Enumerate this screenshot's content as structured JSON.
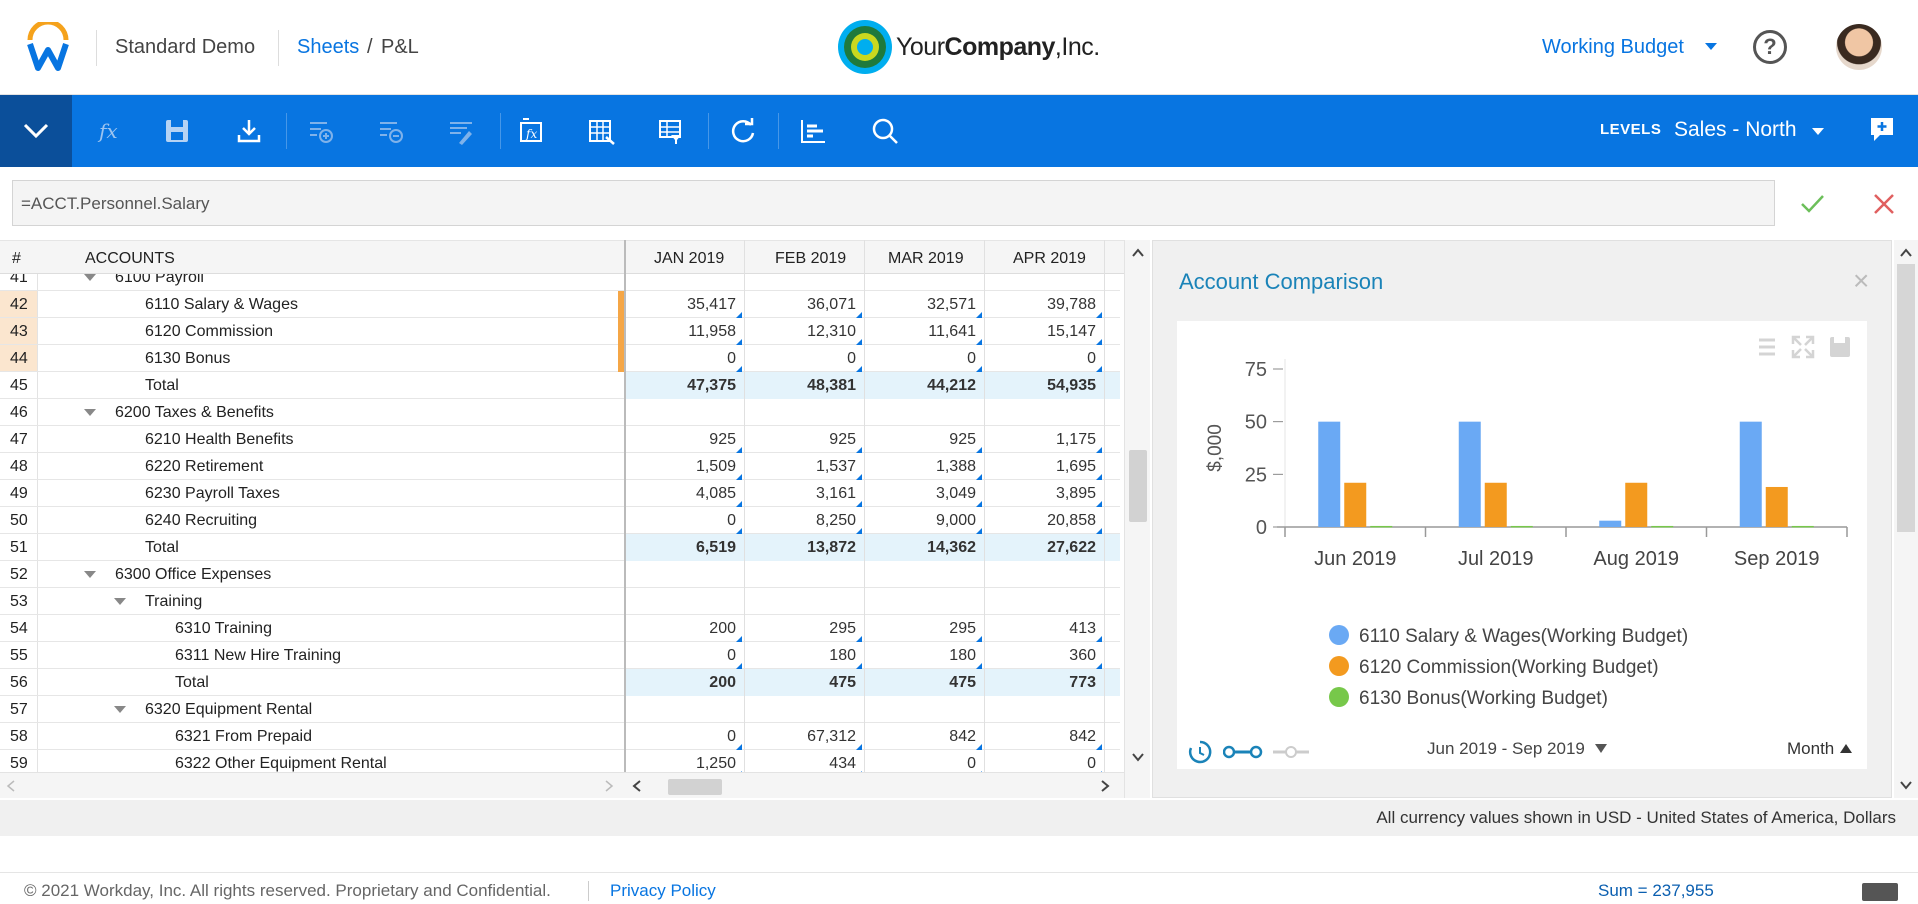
{
  "header": {
    "app_name": "Standard Demo",
    "breadcrumb_link": "Sheets",
    "breadcrumb_sep": "/",
    "breadcrumb_current": "P&L",
    "company_part1": "Your",
    "company_part2": "Company",
    "company_part3": ",Inc.",
    "budget": "Working Budget",
    "help": "?"
  },
  "toolbar": {
    "levels_label": "LEVELS",
    "levels_value": "Sales - North",
    "buttons": [
      "fx",
      "save",
      "download",
      "add-row",
      "remove-row",
      "format",
      "formula-cell",
      "column-settings",
      "row-settings",
      "refresh",
      "chart",
      "search"
    ]
  },
  "formula": {
    "value": "=ACCT.Personnel.Salary"
  },
  "grid": {
    "col_num": "#",
    "col_accounts": "ACCOUNTS",
    "months": [
      "JAN 2019",
      "FEB 2019",
      "MAR 2019",
      "APR 2019"
    ],
    "rows": [
      {
        "n": "41",
        "label": "6100 Payroll",
        "lvl": 1,
        "expand": true,
        "vals": []
      },
      {
        "n": "42",
        "label": "6110 Salary & Wages",
        "lvl": 2,
        "sel": true,
        "vals": [
          "35,417",
          "36,071",
          "32,571",
          "39,788"
        ]
      },
      {
        "n": "43",
        "label": "6120 Commission",
        "lvl": 2,
        "sel": true,
        "vals": [
          "11,958",
          "12,310",
          "11,641",
          "15,147"
        ]
      },
      {
        "n": "44",
        "label": "6130 Bonus",
        "lvl": 2,
        "sel": true,
        "vals": [
          "0",
          "0",
          "0",
          "0"
        ]
      },
      {
        "n": "45",
        "label": "Total",
        "lvl": 2,
        "total": true,
        "vals": [
          "47,375",
          "48,381",
          "44,212",
          "54,935"
        ]
      },
      {
        "n": "46",
        "label": "6200 Taxes & Benefits",
        "lvl": 1,
        "expand": true,
        "vals": []
      },
      {
        "n": "47",
        "label": "6210 Health Benefits",
        "lvl": 2,
        "vals": [
          "925",
          "925",
          "925",
          "1,175"
        ]
      },
      {
        "n": "48",
        "label": "6220 Retirement",
        "lvl": 2,
        "vals": [
          "1,509",
          "1,537",
          "1,388",
          "1,695"
        ]
      },
      {
        "n": "49",
        "label": "6230 Payroll Taxes",
        "lvl": 2,
        "vals": [
          "4,085",
          "3,161",
          "3,049",
          "3,895"
        ]
      },
      {
        "n": "50",
        "label": "6240 Recruiting",
        "lvl": 2,
        "vals": [
          "0",
          "8,250",
          "9,000",
          "20,858"
        ]
      },
      {
        "n": "51",
        "label": "Total",
        "lvl": 2,
        "total": true,
        "vals": [
          "6,519",
          "13,872",
          "14,362",
          "27,622"
        ]
      },
      {
        "n": "52",
        "label": "6300 Office Expenses",
        "lvl": 1,
        "expand": true,
        "vals": []
      },
      {
        "n": "53",
        "label": "Training",
        "lvl": 2,
        "expand": true,
        "vals": []
      },
      {
        "n": "54",
        "label": "6310 Training",
        "lvl": 3,
        "vals": [
          "200",
          "295",
          "295",
          "413"
        ]
      },
      {
        "n": "55",
        "label": "6311 New Hire Training",
        "lvl": 3,
        "vals": [
          "0",
          "180",
          "180",
          "360"
        ]
      },
      {
        "n": "56",
        "label": "Total",
        "lvl": 3,
        "total": true,
        "vals": [
          "200",
          "475",
          "475",
          "773"
        ]
      },
      {
        "n": "57",
        "label": "6320 Equipment Rental",
        "lvl": 2,
        "expand": true,
        "vals": []
      },
      {
        "n": "58",
        "label": "6321 From Prepaid",
        "lvl": 3,
        "vals": [
          "0",
          "67,312",
          "842",
          "842"
        ]
      },
      {
        "n": "59",
        "label": "6322 Other Equipment Rental",
        "lvl": 3,
        "vals": [
          "1,250",
          "434",
          "0",
          "0"
        ]
      }
    ]
  },
  "panel": {
    "title": "Account Comparison",
    "close": "×",
    "range": "Jun 2019 - Sep 2019",
    "period": "Month"
  },
  "chart_data": {
    "type": "bar",
    "categories": [
      "Jun 2019",
      "Jul 2019",
      "Aug 2019",
      "Sep 2019"
    ],
    "series": [
      {
        "name": "6110 Salary & Wages(Working Budget)",
        "color": "#6aa9f4",
        "values": [
          50,
          50,
          3,
          50
        ]
      },
      {
        "name": "6120 Commission(Working Budget)",
        "color": "#f39a1f",
        "values": [
          21,
          21,
          21,
          19
        ]
      },
      {
        "name": "6130 Bonus(Working Budget)",
        "color": "#77c84a",
        "values": [
          0.5,
          0.5,
          0.5,
          0.5
        ]
      }
    ],
    "ylabel": "$,000",
    "ylim": [
      0,
      75
    ],
    "yticks": [
      "0",
      "25",
      "50",
      "75"
    ],
    "legend": "bottom"
  },
  "footer": {
    "currency_note": "All currency values shown in USD - United States of America, Dollars",
    "copyright": "© 2021 Workday, Inc. All rights reserved. Proprietary and Confidential.",
    "privacy": "Privacy Policy",
    "sum": "Sum = 237,955"
  }
}
